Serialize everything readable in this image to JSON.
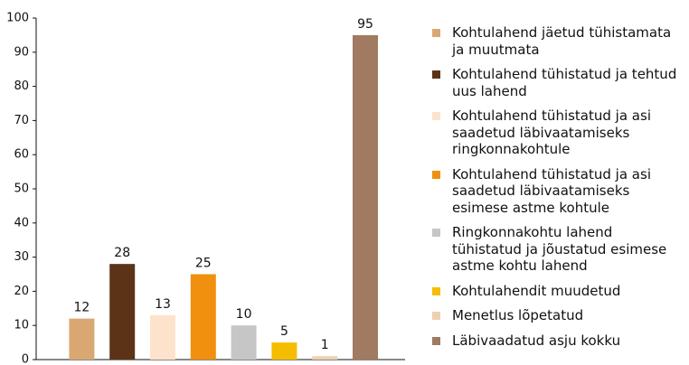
{
  "chart_data": {
    "type": "bar",
    "categories": [
      "Kohtulahend jäetud tühistamata ja muutmata",
      "Kohtulahend tühistatud ja tehtud uus lahend",
      "Kohtulahend tühistatud ja asi saadetud läbivaatamiseks ringkonnakohtule",
      "Kohtulahend tühistatud ja asi saadetud läbivaatamiseks esimese astme kohtule",
      "Ringkonnakohtu lahend tühistatud ja jõustatud esimese astme kohtu lahend",
      "Kohtulahendit muudetud",
      "Menetlus lõpetatud",
      "Läbivaadatud asju kokku"
    ],
    "values": [
      12,
      28,
      13,
      25,
      10,
      5,
      1,
      95
    ],
    "colors": [
      "#d9a872",
      "#5c3317",
      "#fde3cc",
      "#f0900e",
      "#c6c6c6",
      "#f5bd00",
      "#eecfb3",
      "#a07a61"
    ],
    "ylim": [
      0,
      100
    ],
    "yticks": [
      0,
      10,
      20,
      30,
      40,
      50,
      60,
      70,
      80,
      90,
      100
    ],
    "grid": false
  }
}
